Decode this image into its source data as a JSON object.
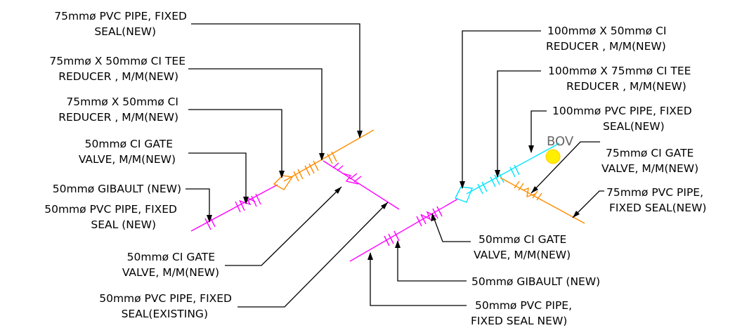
{
  "colors": {
    "pipe_50mm": "#ff00ff",
    "pipe_75mm": "#ff8c00",
    "pipe_100mm": "#00e5ff",
    "bov_marker": "#ffee00",
    "leader": "#000000"
  },
  "left_labels": {
    "pipe_75": [
      "75mmø PVC PIPE, FIXED",
      "SEAL(NEW)"
    ],
    "tee_reducer_75x50": [
      "75mmø X 50mmø CI TEE",
      "REDUCER , M/M(NEW)"
    ],
    "reducer_75x50": [
      "75mmø X 50mmø CI",
      "REDUCER , M/M(NEW)"
    ],
    "gate_valve_50_a": [
      "50mmø CI GATE",
      "VALVE, M/M(NEW)"
    ],
    "gibault_50": [
      "50mmø GIBAULT (NEW)"
    ],
    "pipe_50_seal": [
      "50mmø PVC PIPE, FIXED",
      "SEAL (NEW)"
    ],
    "gate_valve_50_b": [
      "50mmø CI GATE",
      "VALVE, M/M(NEW)"
    ],
    "pipe_50_existing": [
      "50mmø PVC PIPE, FIXED",
      "SEAL(EXISTING)"
    ]
  },
  "right_labels": {
    "reducer_100x50": [
      "100mmø X 50mmø CI",
      "REDUCER , M/M(NEW)"
    ],
    "tee_reducer_100x75": [
      "100mmø X 75mmø CI TEE",
      "REDUCER , M/M(NEW)"
    ],
    "pipe_100": [
      "100mmø PVC PIPE, FIXED",
      "SEAL(NEW)"
    ],
    "bov": [
      "BOV"
    ],
    "gate_valve_75": [
      "75mmø CI GATE",
      "VALVE, M/M(NEW)"
    ],
    "pipe_75_seal": [
      "75mmø PVC PIPE,",
      "FIXED SEAL(NEW)"
    ],
    "gate_valve_50": [
      "50mmø CI GATE",
      "VALVE, M/M(NEW)"
    ],
    "gibault_50": [
      "50mmø GIBAULT (NEW)"
    ],
    "pipe_50_new": [
      "50mmø PVC PIPE,",
      "FIXED SEAL NEW)"
    ]
  }
}
